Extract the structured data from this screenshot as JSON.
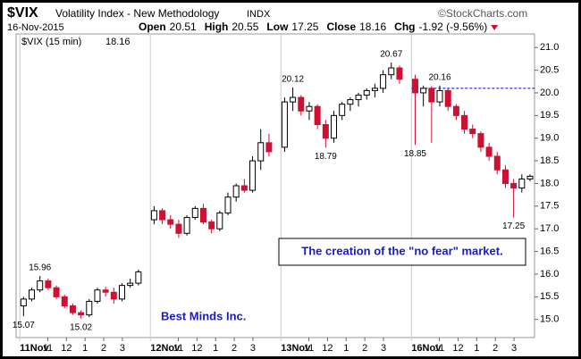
{
  "chart_data": {
    "type": "candlestick",
    "title": "$VIX",
    "subtitle": "Volatility Index - New Methodology",
    "exchange": "INDX",
    "source": "©StockCharts.com",
    "date": "16-Nov-2015",
    "stats": [
      {
        "label": "Open",
        "value": 20.51
      },
      {
        "label": "High",
        "value": 20.55
      },
      {
        "label": "Low",
        "value": 17.25
      },
      {
        "label": "Close",
        "value": 18.16
      }
    ],
    "change": {
      "label": "Chg",
      "text": "-1.92 (-9.56%)"
    },
    "series": [
      {
        "name": "$VIX (15 min)",
        "last": 18.16,
        "up_color": "#ffffff",
        "down_color": "#cc1133"
      }
    ],
    "x": [
      0.2,
      0.64,
      1.08,
      1.52,
      1.96,
      2.4,
      2.84,
      3.28,
      3.72,
      4.16,
      4.6,
      5.04,
      5.48,
      5.92,
      6.36,
      7.2,
      7.64,
      8.08,
      8.52,
      8.96,
      9.4,
      9.84,
      10.28,
      10.72,
      11.16,
      11.6,
      12.04,
      12.48,
      12.92,
      13.36,
      14.2,
      14.64,
      15.08,
      15.52,
      15.96,
      16.4,
      16.84,
      17.28,
      17.72,
      18.16,
      18.6,
      19.04,
      19.48,
      19.92,
      20.36,
      21.2,
      21.64,
      22.08,
      22.52,
      22.96,
      23.4,
      23.84,
      24.28,
      24.72,
      25.16,
      25.6,
      26.04,
      26.48,
      26.92,
      27.36
    ],
    "open": [
      15.3,
      15.45,
      15.65,
      15.85,
      15.7,
      15.5,
      15.3,
      15.15,
      15.1,
      15.4,
      15.65,
      15.6,
      15.45,
      15.75,
      15.8,
      17.2,
      17.4,
      17.2,
      17.1,
      16.9,
      17.25,
      17.45,
      17.15,
      17.0,
      17.35,
      17.7,
      17.95,
      17.85,
      18.5,
      18.9,
      18.8,
      19.8,
      19.9,
      19.6,
      19.7,
      19.3,
      19.0,
      19.5,
      19.75,
      19.85,
      19.95,
      20.05,
      20.1,
      20.4,
      20.55,
      20.3,
      20.0,
      20.1,
      19.8,
      20.05,
      19.7,
      19.5,
      19.2,
      19.1,
      18.8,
      18.6,
      18.3,
      18.0,
      17.9,
      18.1
    ],
    "high": [
      15.5,
      15.7,
      15.96,
      15.9,
      15.75,
      15.55,
      15.35,
      15.2,
      15.45,
      15.7,
      15.72,
      15.7,
      15.8,
      15.9,
      16.1,
      17.5,
      17.45,
      17.3,
      17.2,
      17.3,
      17.5,
      17.55,
      17.2,
      17.4,
      17.8,
      18.0,
      18.1,
      18.6,
      19.2,
      19.1,
      19.9,
      20.12,
      19.95,
      19.8,
      19.75,
      19.4,
      19.6,
      19.8,
      19.9,
      20.0,
      20.1,
      20.2,
      20.5,
      20.67,
      20.6,
      20.4,
      20.16,
      20.15,
      20.16,
      20.1,
      19.75,
      19.6,
      19.3,
      19.15,
      18.9,
      18.7,
      18.4,
      18.1,
      18.2,
      18.2
    ],
    "low": [
      15.07,
      15.4,
      15.6,
      15.65,
      15.45,
      15.25,
      15.1,
      15.02,
      15.05,
      15.35,
      15.5,
      15.35,
      15.4,
      15.7,
      15.75,
      17.1,
      17.1,
      17.0,
      16.8,
      16.85,
      17.2,
      17.1,
      16.9,
      16.95,
      17.3,
      17.6,
      17.8,
      17.8,
      18.3,
      18.6,
      18.7,
      19.6,
      19.5,
      19.4,
      19.2,
      18.79,
      18.9,
      19.4,
      19.6,
      19.7,
      19.85,
      19.9,
      20.0,
      20.3,
      20.2,
      18.85,
      19.7,
      18.9,
      19.7,
      19.6,
      19.4,
      19.1,
      19.0,
      18.7,
      18.5,
      18.2,
      17.9,
      17.25,
      17.8,
      18.05
    ],
    "close": [
      15.45,
      15.65,
      15.85,
      15.7,
      15.5,
      15.3,
      15.15,
      15.1,
      15.4,
      15.65,
      15.6,
      15.45,
      15.75,
      15.8,
      16.05,
      17.4,
      17.2,
      17.1,
      16.9,
      17.25,
      17.45,
      17.15,
      17.0,
      17.35,
      17.7,
      17.95,
      17.85,
      18.5,
      18.9,
      18.7,
      19.8,
      19.9,
      19.6,
      19.7,
      19.3,
      19.0,
      19.5,
      19.75,
      19.85,
      19.95,
      20.05,
      20.1,
      20.4,
      20.55,
      20.3,
      20.0,
      20.1,
      19.8,
      20.05,
      19.7,
      19.5,
      19.2,
      19.1,
      18.8,
      18.6,
      18.3,
      18.0,
      17.9,
      18.1,
      18.16
    ],
    "price_labels": [
      15.07,
      15.96,
      15.02,
      20.12,
      18.79,
      20.67,
      18.85,
      20.16,
      17.25
    ],
    "xlim": [
      -0.2,
      27.6
    ],
    "xticks": [
      {
        "value": 0,
        "label": "11Nov"
      },
      {
        "value": 1.5,
        "label": "11"
      },
      {
        "value": 2.5,
        "label": "12"
      },
      {
        "value": 3.5,
        "label": "1"
      },
      {
        "value": 4.5,
        "label": "2"
      },
      {
        "value": 5.5,
        "label": "3"
      },
      {
        "value": 7,
        "label": "12Nov"
      },
      {
        "value": 8.5,
        "label": "11"
      },
      {
        "value": 9.5,
        "label": "12"
      },
      {
        "value": 10.5,
        "label": "1"
      },
      {
        "value": 11.5,
        "label": "2"
      },
      {
        "value": 12.5,
        "label": "3"
      },
      {
        "value": 14,
        "label": "13Nov"
      },
      {
        "value": 15.5,
        "label": "11"
      },
      {
        "value": 16.5,
        "label": "12"
      },
      {
        "value": 17.5,
        "label": "1"
      },
      {
        "value": 18.5,
        "label": "2"
      },
      {
        "value": 19.5,
        "label": "3"
      },
      {
        "value": 21,
        "label": "16Nov"
      },
      {
        "value": 22.5,
        "label": "11"
      },
      {
        "value": 23.5,
        "label": "12"
      },
      {
        "value": 24.5,
        "label": "1"
      },
      {
        "value": 25.5,
        "label": "2"
      },
      {
        "value": 26.5,
        "label": "3"
      }
    ],
    "ylim": [
      14.6,
      21.3
    ],
    "yticks": [
      {
        "value": 15,
        "label": "15.0"
      },
      15.5,
      {
        "value": 16,
        "label": "16.0"
      },
      16.5,
      {
        "value": 17,
        "label": "17.0"
      },
      17.5,
      {
        "value": 18,
        "label": "18.0"
      },
      18.5,
      {
        "value": 19,
        "label": "19.0"
      },
      19.5,
      {
        "value": 20,
        "label": "20.0"
      },
      20.5,
      {
        "value": 21,
        "label": "21.0"
      }
    ],
    "reference_line": {
      "value": 20.1,
      "x_start": 21.0,
      "color": "#0000cc"
    },
    "annotations": [
      {
        "text": "The creation of the \"no fear\" market.",
        "boxed": true,
        "color": "#1a1acc"
      },
      {
        "text": "Best Minds Inc.",
        "boxed": false,
        "color": "#1a1acc"
      }
    ]
  }
}
